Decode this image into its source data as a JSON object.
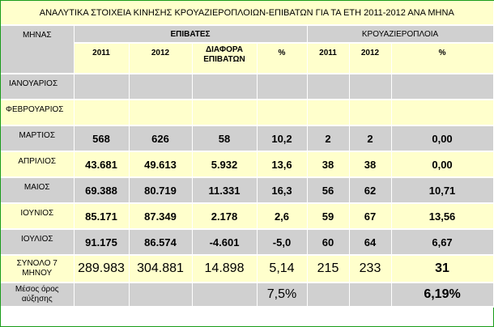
{
  "title": "ΑΝΑΛΥΤΙΚΑ ΣΤΟΙΧΕΙΑ ΚΙΝΗΣΗΣ ΚΡΟΥΑΖΙΕΡΟΠΛΟΙΩΝ-ΕΠΙΒΑΤΩΝ ΓΙΑ ΤΑ ΕΤΗ 2011-2012 ΑΝΑ ΜΗΝΑ",
  "headers": {
    "month": "ΜΗΝΑΣ",
    "passengers": "ΕΠΙΒΑΤΕΣ",
    "ships": "ΚΡΟΥΑΖΙΕΡΟΠΛΟΙΑ",
    "sub": {
      "p2011": "2011",
      "p2012": "2012",
      "diff_line1": "ΔΙΑΦΟΡΑ",
      "diff_line2": "ΕΠΙΒΑΤΩΝ",
      "ppct": "%",
      "s2011": "2011",
      "s2012": "2012",
      "spct": "%"
    }
  },
  "rows": [
    {
      "month": "ΙΑΝΟΥΑΡΙΟΣ",
      "p2011": "",
      "p2012": "",
      "diff": "",
      "ppct": "",
      "s2011": "",
      "s2012": "",
      "spct": ""
    },
    {
      "month": "ΦΕΒΡΟΥΑΡΙΟΣ",
      "p2011": "",
      "p2012": "",
      "diff": "",
      "ppct": "",
      "s2011": "",
      "s2012": "",
      "spct": ""
    },
    {
      "month": "ΜΑΡΤΙΟΣ",
      "p2011": "568",
      "p2012": "626",
      "diff": "58",
      "ppct": "10,2",
      "s2011": "2",
      "s2012": "2",
      "spct": "0,00"
    },
    {
      "month": "ΑΠΡΙΛΙΟΣ",
      "p2011": "43.681",
      "p2012": "49.613",
      "diff": "5.932",
      "ppct": "13,6",
      "s2011": "38",
      "s2012": "38",
      "spct": "0,00"
    },
    {
      "month": "ΜΑΙΟΣ",
      "p2011": "69.388",
      "p2012": "80.719",
      "diff": "11.331",
      "ppct": "16,3",
      "s2011": "56",
      "s2012": "62",
      "spct": "10,71"
    },
    {
      "month": "ΙΟΥΝΙΟΣ",
      "p2011": "85.171",
      "p2012": "87.349",
      "diff": "2.178",
      "ppct": "2,6",
      "s2011": "59",
      "s2012": "67",
      "spct": "13,56"
    },
    {
      "month": "ΙΟΥΛΙΟΣ",
      "p2011": "91.175",
      "p2012": "86.574",
      "diff": "-4.601",
      "ppct": "-5,0",
      "s2011": "60",
      "s2012": "64",
      "spct": "6,67"
    }
  ],
  "total": {
    "month_line1": "ΣΥΝΟΛΟ 7",
    "month_line2": "ΜΗΝΟΥ",
    "p2011": "289.983",
    "p2012": "304.881",
    "diff": "14.898",
    "ppct": "5,14",
    "s2011": "215",
    "s2012": "233",
    "spct": "31"
  },
  "average": {
    "label_line1": "Μέσος όρος",
    "label_line2": "αύξησης",
    "ppct": "7,5%",
    "spct": "6,19%"
  },
  "colors": {
    "header_gray": "#d0d0d0",
    "highlight_yellow": "#ffffcc",
    "frame_green": "#1a9c1a"
  }
}
